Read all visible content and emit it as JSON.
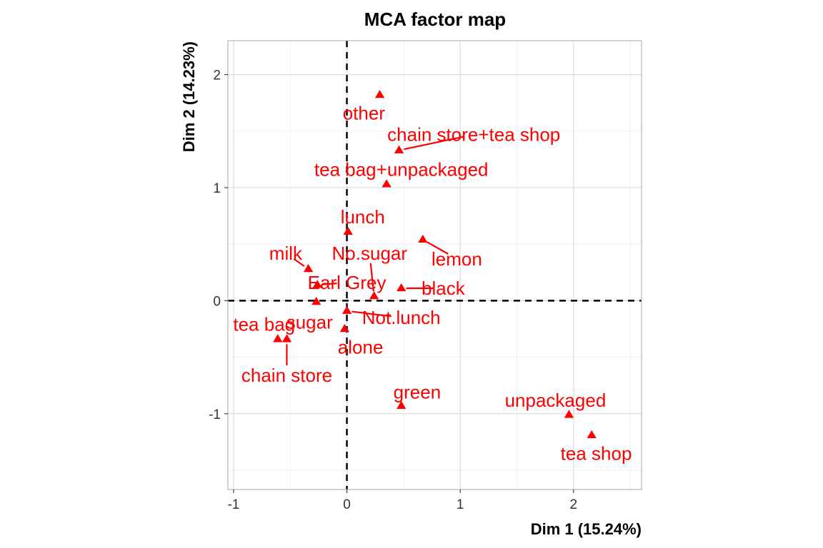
{
  "chart_data": {
    "type": "scatter",
    "title": "MCA factor map",
    "xlabel": "Dim 1 (15.24%)",
    "ylabel": "Dim 2 (14.23%)",
    "xlim": [
      -1.05,
      2.6
    ],
    "ylim": [
      -1.67,
      2.3
    ],
    "x_ticks": [
      -1,
      0,
      1,
      2
    ],
    "y_ticks": [
      -1,
      0,
      1,
      2
    ],
    "x_tick_labels": [
      "-1",
      "0",
      "1",
      "2"
    ],
    "y_tick_labels": [
      "-1",
      "0",
      "1",
      "2"
    ],
    "grid": true,
    "reference_lines": {
      "x": 0,
      "y": 0,
      "style": "dashed"
    },
    "marker": "triangle",
    "color": "#ff0000",
    "points": [
      {
        "label": "other",
        "x": 0.29,
        "y": 1.82,
        "label_x": 0.15,
        "label_y": 1.66
      },
      {
        "label": "chain store+tea shop",
        "x": 0.46,
        "y": 1.33,
        "label_x": 1.12,
        "label_y": 1.47
      },
      {
        "label": "tea bag+unpackaged",
        "x": 0.35,
        "y": 1.03,
        "label_x": 0.48,
        "label_y": 1.16
      },
      {
        "label": "lunch",
        "x": 0.01,
        "y": 0.61,
        "label_x": 0.14,
        "label_y": 0.74
      },
      {
        "label": "lemon",
        "x": 0.67,
        "y": 0.54,
        "label_x": 0.97,
        "label_y": 0.37
      },
      {
        "label": "No.sugar",
        "x": 0.24,
        "y": 0.04,
        "label_x": 0.2,
        "label_y": 0.42
      },
      {
        "label": "milk",
        "x": -0.34,
        "y": 0.28,
        "label_x": -0.54,
        "label_y": 0.42
      },
      {
        "label": "Earl Grey",
        "x": -0.26,
        "y": 0.14,
        "label_x": 0.0,
        "label_y": 0.16
      },
      {
        "label": "black",
        "x": 0.48,
        "y": 0.11,
        "label_x": 0.85,
        "label_y": 0.11
      },
      {
        "label": "sugar",
        "x": -0.27,
        "y": -0.01,
        "label_x": -0.33,
        "label_y": -0.19
      },
      {
        "label": "Not.lunch",
        "x": 0.0,
        "y": -0.09,
        "label_x": 0.48,
        "label_y": -0.15
      },
      {
        "label": "tea bag",
        "x": -0.61,
        "y": -0.34,
        "label_x": -0.73,
        "label_y": -0.21
      },
      {
        "label": "chain store",
        "x": -0.53,
        "y": -0.34,
        "label_x": -0.53,
        "label_y": -0.66
      },
      {
        "label": "alone",
        "x": -0.02,
        "y": -0.25,
        "label_x": 0.12,
        "label_y": -0.41
      },
      {
        "label": "green",
        "x": 0.48,
        "y": -0.93,
        "label_x": 0.62,
        "label_y": -0.81
      },
      {
        "label": "unpackaged",
        "x": 1.96,
        "y": -1.01,
        "label_x": 1.84,
        "label_y": -0.88
      },
      {
        "label": "tea shop",
        "x": 2.16,
        "y": -1.19,
        "label_x": 2.2,
        "label_y": -1.35
      }
    ]
  }
}
